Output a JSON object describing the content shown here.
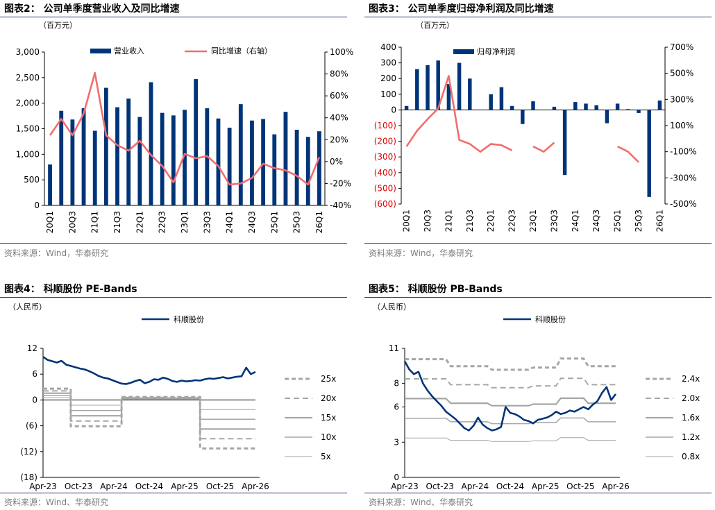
{
  "panels": [
    {
      "title": "图表2：  公司单季度营业收入及同比增速",
      "source": "资料来源：Wind，华泰研究"
    },
    {
      "title": "图表3：  公司单季度归母净利润及同比增速",
      "source": "资料来源：Wind，华泰研究"
    },
    {
      "title": "图表4：  科顺股份 PE-Bands",
      "source": "资料来源：Wind、华泰研究"
    },
    {
      "title": "图表5：  科顺股份 PB-Bands",
      "source": "资料来源：Wind、华泰研究"
    }
  ],
  "chart_data": [
    {
      "type": "bar",
      "unit_label": "（百万元）",
      "categories": [
        "20Q1",
        "20Q2",
        "20Q3",
        "20Q4",
        "21Q1",
        "21Q2",
        "21Q3",
        "21Q4",
        "22Q1",
        "22Q2",
        "22Q3",
        "22Q4",
        "23Q1",
        "23Q2",
        "23Q3",
        "23Q4",
        "24Q1",
        "24Q2",
        "24Q3",
        "24Q4",
        "25Q1",
        "25Q2",
        "25Q3",
        "25Q4",
        "26Q1"
      ],
      "tick_label_categories": [
        "20Q1",
        "20Q3",
        "21Q1",
        "21Q3",
        "22Q1",
        "22Q3",
        "23Q1",
        "23Q3",
        "24Q1",
        "24Q3",
        "25Q1",
        "25Q3",
        "26Q1"
      ],
      "series": [
        {
          "name": "营业收入",
          "axis": "left",
          "kind": "bar",
          "color": "#003478",
          "values": [
            800,
            1850,
            1680,
            1900,
            1460,
            2300,
            1920,
            2090,
            1730,
            2410,
            1810,
            1760,
            1870,
            2470,
            1900,
            1700,
            1520,
            1980,
            1660,
            1690,
            1390,
            1830,
            1480,
            1340,
            1450
          ]
        },
        {
          "name": "同比增速（右轴）",
          "axis": "right",
          "kind": "line",
          "color": "#f26d6d",
          "values": [
            24,
            39,
            24,
            44,
            81,
            24,
            15,
            10,
            19,
            6,
            -4,
            -19,
            7,
            3,
            5,
            -4,
            -21,
            -20,
            -15,
            -2,
            -6,
            -8,
            -13,
            -21,
            4
          ]
        }
      ],
      "ylim_left": [
        0,
        3000
      ],
      "yticks_left": [
        "3,000",
        "2,500",
        "2,000",
        "1,500",
        "1,000",
        "500",
        "0"
      ],
      "ylim_right": [
        -40,
        100
      ],
      "yticks_right": [
        "100%",
        "80%",
        "60%",
        "40%",
        "20%",
        "0%",
        "-20%",
        "-40%"
      ],
      "legend": "top"
    },
    {
      "type": "bar",
      "unit_label": "（百万元）",
      "categories": [
        "20Q1",
        "20Q2",
        "20Q3",
        "20Q4",
        "21Q1",
        "21Q2",
        "21Q3",
        "21Q4",
        "22Q1",
        "22Q2",
        "22Q3",
        "22Q4",
        "23Q1",
        "23Q2",
        "23Q3",
        "23Q4",
        "24Q1",
        "24Q2",
        "24Q3",
        "24Q4",
        "25Q1",
        "25Q2",
        "25Q3",
        "25Q4",
        "26Q1"
      ],
      "tick_label_categories": [
        "20Q1",
        "20Q3",
        "21Q1",
        "21Q3",
        "22Q1",
        "22Q3",
        "23Q1",
        "23Q3",
        "24Q1",
        "24Q3",
        "25Q1",
        "25Q3",
        "26Q1"
      ],
      "series": [
        {
          "name": "归母净利润",
          "axis": "left",
          "kind": "bar",
          "color": "#003478",
          "values": [
            25,
            260,
            285,
            315,
            165,
            300,
            200,
            0,
            100,
            145,
            25,
            -90,
            55,
            0,
            20,
            -415,
            50,
            40,
            30,
            -85,
            40,
            5,
            -20,
            -555,
            60
          ]
        },
        {
          "name": "同比增速",
          "axis": "right",
          "kind": "line",
          "color": "#f26d6d",
          "values": [
            -60,
            60,
            150,
            230,
            480,
            -10,
            -40,
            -100,
            -40,
            -50,
            -90,
            null,
            -60,
            -100,
            -30,
            null,
            null,
            null,
            null,
            null,
            -60,
            -100,
            -180,
            null,
            null
          ]
        }
      ],
      "ylim_left": [
        -600,
        400
      ],
      "yticks_left": [
        "400",
        "300",
        "200",
        "100",
        "0",
        "(100)",
        "(200)",
        "(300)",
        "(400)",
        "(500)",
        "(600)"
      ],
      "ylim_right": [
        -500,
        700
      ],
      "yticks_right": [
        "700%",
        "500%",
        "300%",
        "100%",
        "-100%",
        "-300%",
        "-500%"
      ],
      "legend": "top"
    },
    {
      "type": "line",
      "unit_label": "（人民币）",
      "x_tick_labels": [
        "Apr-23",
        "Oct-23",
        "Apr-24",
        "Oct-24",
        "Apr-25",
        "Oct-25",
        "Apr-26"
      ],
      "ylim": [
        -18,
        12
      ],
      "yticks": [
        "12",
        "6",
        "0",
        "(6)",
        "(12)",
        "(18)"
      ],
      "price_series": {
        "name": "科顺股份",
        "color": "#003478",
        "values": [
          10.0,
          9.3,
          9.0,
          8.7,
          9.1,
          8.2,
          7.9,
          7.6,
          7.3,
          7.1,
          6.7,
          6.2,
          5.6,
          5.2,
          5.0,
          4.6,
          4.2,
          3.8,
          3.7,
          4.0,
          4.4,
          4.7,
          3.9,
          4.2,
          4.8,
          4.7,
          5.2,
          4.9,
          4.4,
          4.2,
          4.5,
          4.3,
          4.4,
          4.6,
          4.5,
          4.8,
          5.0,
          4.9,
          5.1,
          5.3,
          5.0,
          5.2,
          5.4,
          5.5,
          7.5,
          6.0,
          6.5
        ]
      },
      "bands": [
        {
          "name": "25x",
          "style": "dashed-thick",
          "color": "#a6a6a6"
        },
        {
          "name": "20x",
          "style": "dashed",
          "color": "#a6a6a6"
        },
        {
          "name": "15x",
          "style": "solid-thick",
          "color": "#a6a6a6"
        },
        {
          "name": "10x",
          "style": "solid",
          "color": "#a6a6a6"
        },
        {
          "name": "5x",
          "style": "solid-thin",
          "color": "#a6a6a6"
        }
      ],
      "band_levels": {
        "period1_eps_factor": 0.105,
        "period2_eps_factor": -0.245,
        "period3_eps_factor": 0.028,
        "period4_eps_factor": -0.45
      }
    },
    {
      "type": "line",
      "unit_label": "（人民币）",
      "x_tick_labels": [
        "Apr-23",
        "Oct-23",
        "Apr-24",
        "Oct-24",
        "Apr-25",
        "Oct-25",
        "Apr-26"
      ],
      "ylim": [
        0,
        11
      ],
      "yticks": [
        "11",
        "8",
        "6",
        "3",
        "0"
      ],
      "price_series": {
        "name": "科顺股份",
        "color": "#003478",
        "values": [
          9.9,
          9.2,
          8.8,
          9.0,
          8.0,
          7.4,
          6.9,
          6.5,
          6.1,
          5.6,
          5.3,
          5.0,
          4.6,
          4.2,
          4.0,
          4.4,
          5.1,
          4.5,
          4.2,
          4.0,
          4.1,
          4.3,
          6.0,
          5.5,
          5.4,
          5.2,
          4.9,
          4.8,
          4.6,
          4.9,
          5.0,
          5.1,
          5.3,
          5.6,
          5.4,
          5.5,
          5.7,
          5.6,
          5.8,
          6.0,
          5.8,
          6.2,
          6.5,
          7.2,
          7.7,
          6.6,
          7.1
        ]
      },
      "bands": [
        {
          "name": "2.4x",
          "style": "dashed-thick",
          "color": "#a6a6a6"
        },
        {
          "name": "2.0x",
          "style": "dashed",
          "color": "#a6a6a6"
        },
        {
          "name": "1.6x",
          "style": "solid-thick",
          "color": "#a6a6a6"
        },
        {
          "name": "1.2x",
          "style": "solid",
          "color": "#a6a6a6"
        },
        {
          "name": "0.8x",
          "style": "solid-thin",
          "color": "#a6a6a6"
        }
      ]
    }
  ]
}
